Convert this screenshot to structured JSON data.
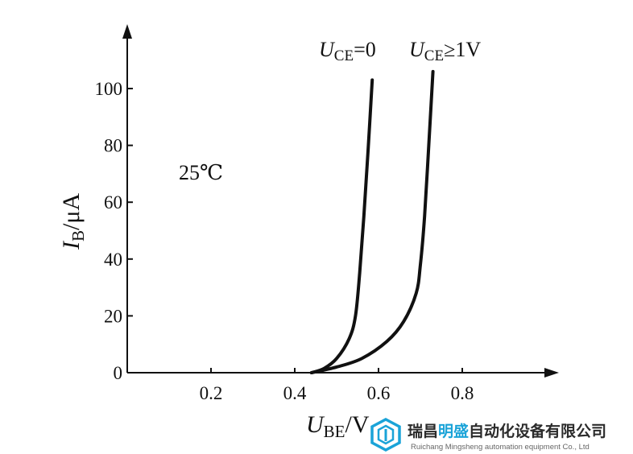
{
  "chart_data": {
    "type": "line",
    "x_axis": {
      "label_symbol": "U",
      "label_subscript": "BE",
      "label_unit": "/V",
      "range": [
        0,
        0.9
      ],
      "ticks": [
        0.2,
        0.4,
        0.6,
        0.8
      ],
      "tick_labels": [
        "0.2",
        "0.4",
        "0.6",
        "0.8"
      ]
    },
    "y_axis": {
      "label_symbol": "I",
      "label_subscript": "B",
      "label_unit": "/μA",
      "range": [
        0,
        110
      ],
      "ticks": [
        0,
        20,
        40,
        60,
        80,
        100
      ],
      "tick_labels": [
        "0",
        "20",
        "40",
        "60",
        "80",
        "100"
      ]
    },
    "annotation": "25℃",
    "grid": false,
    "series": [
      {
        "name_symbol": "U",
        "name_subscript": "CE",
        "name_suffix": "=0",
        "points": [
          [
            0.44,
            0
          ],
          [
            0.47,
            1.5
          ],
          [
            0.5,
            5
          ],
          [
            0.53,
            12
          ],
          [
            0.545,
            20
          ],
          [
            0.555,
            35
          ],
          [
            0.565,
            55
          ],
          [
            0.575,
            78
          ],
          [
            0.585,
            103
          ]
        ]
      },
      {
        "name_symbol": "U",
        "name_subscript": "CE",
        "name_suffix": "≥1V",
        "points": [
          [
            0.44,
            0
          ],
          [
            0.5,
            2
          ],
          [
            0.56,
            5
          ],
          [
            0.62,
            11
          ],
          [
            0.66,
            18
          ],
          [
            0.69,
            28
          ],
          [
            0.7,
            38
          ],
          [
            0.71,
            55
          ],
          [
            0.72,
            80
          ],
          [
            0.73,
            106
          ]
        ]
      }
    ]
  },
  "watermark": {
    "text_cn_pre": "瑞昌",
    "text_cn_brand": "明盛",
    "text_cn_post": "自动化设备有限公司",
    "text_en": "Ruichang Mingsheng automation equipment Co., Ltd",
    "color_brand": "#1aa3d8",
    "color_logo": "#1aa3d8"
  }
}
